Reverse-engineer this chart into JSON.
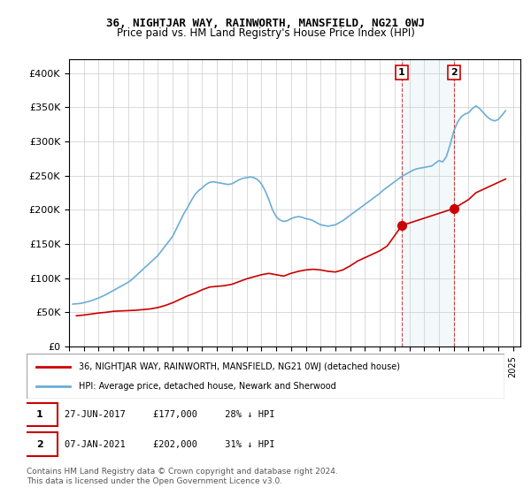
{
  "title": "36, NIGHTJAR WAY, RAINWORTH, MANSFIELD, NG21 0WJ",
  "subtitle": "Price paid vs. HM Land Registry's House Price Index (HPI)",
  "xlabel": "",
  "ylabel": "",
  "ylim": [
    0,
    420000
  ],
  "yticks": [
    0,
    50000,
    100000,
    150000,
    200000,
    250000,
    300000,
    350000,
    400000
  ],
  "ytick_labels": [
    "£0",
    "£50K",
    "£100K",
    "£150K",
    "£200K",
    "£250K",
    "£300K",
    "£350K",
    "£400K"
  ],
  "xlim_start": 1995.0,
  "xlim_end": 2025.5,
  "marker1_x": 2017.49,
  "marker1_y": 177000,
  "marker2_x": 2021.02,
  "marker2_y": 202000,
  "marker1_label": "1",
  "marker2_label": "2",
  "legend_line1": "36, NIGHTJAR WAY, RAINWORTH, MANSFIELD, NG21 0WJ (detached house)",
  "legend_line2": "HPI: Average price, detached house, Newark and Sherwood",
  "annotation1": "27-JUN-2017     £177,000     28% ↓ HPI",
  "annotation2": "07-JAN-2021     £202,000     31% ↓ HPI",
  "footer": "Contains HM Land Registry data © Crown copyright and database right 2024.\nThis data is licensed under the Open Government Licence v3.0.",
  "hpi_color": "#6baed6",
  "price_color": "#cc0000",
  "vline_color": "#cc0000",
  "vline_alpha": 0.5,
  "grid_color": "#cccccc",
  "background_color": "#ffffff",
  "hpi_data": {
    "years": [
      1995.25,
      1995.5,
      1995.75,
      1996.0,
      1996.25,
      1996.5,
      1996.75,
      1997.0,
      1997.25,
      1997.5,
      1997.75,
      1998.0,
      1998.25,
      1998.5,
      1998.75,
      1999.0,
      1999.25,
      1999.5,
      1999.75,
      2000.0,
      2000.25,
      2000.5,
      2000.75,
      2001.0,
      2001.25,
      2001.5,
      2001.75,
      2002.0,
      2002.25,
      2002.5,
      2002.75,
      2003.0,
      2003.25,
      2003.5,
      2003.75,
      2004.0,
      2004.25,
      2004.5,
      2004.75,
      2005.0,
      2005.25,
      2005.5,
      2005.75,
      2006.0,
      2006.25,
      2006.5,
      2006.75,
      2007.0,
      2007.25,
      2007.5,
      2007.75,
      2008.0,
      2008.25,
      2008.5,
      2008.75,
      2009.0,
      2009.25,
      2009.5,
      2009.75,
      2010.0,
      2010.25,
      2010.5,
      2010.75,
      2011.0,
      2011.25,
      2011.5,
      2011.75,
      2012.0,
      2012.25,
      2012.5,
      2012.75,
      2013.0,
      2013.25,
      2013.5,
      2013.75,
      2014.0,
      2014.25,
      2014.5,
      2014.75,
      2015.0,
      2015.25,
      2015.5,
      2015.75,
      2016.0,
      2016.25,
      2016.5,
      2016.75,
      2017.0,
      2017.25,
      2017.5,
      2017.75,
      2018.0,
      2018.25,
      2018.5,
      2018.75,
      2019.0,
      2019.25,
      2019.5,
      2019.75,
      2020.0,
      2020.25,
      2020.5,
      2020.75,
      2021.0,
      2021.25,
      2021.5,
      2021.75,
      2022.0,
      2022.25,
      2022.5,
      2022.75,
      2023.0,
      2023.25,
      2023.5,
      2023.75,
      2024.0,
      2024.25,
      2024.5
    ],
    "values": [
      62000,
      62500,
      63000,
      64000,
      65500,
      67000,
      69000,
      71000,
      73500,
      76000,
      79000,
      82000,
      85000,
      88000,
      91000,
      94000,
      98000,
      103000,
      108000,
      113000,
      118000,
      123000,
      128000,
      133000,
      140000,
      147000,
      154000,
      161000,
      172000,
      183000,
      194000,
      203000,
      213000,
      222000,
      228000,
      232000,
      237000,
      240000,
      241000,
      240000,
      239000,
      238000,
      237000,
      238000,
      241000,
      244000,
      246000,
      247000,
      248000,
      247000,
      244000,
      238000,
      228000,
      215000,
      200000,
      190000,
      185000,
      183000,
      184000,
      187000,
      189000,
      190000,
      189000,
      187000,
      186000,
      184000,
      181000,
      178000,
      177000,
      176000,
      177000,
      178000,
      181000,
      184000,
      188000,
      192000,
      196000,
      200000,
      204000,
      208000,
      212000,
      216000,
      220000,
      224000,
      229000,
      233000,
      237000,
      241000,
      245000,
      249000,
      252000,
      255000,
      258000,
      260000,
      261000,
      262000,
      263000,
      264000,
      268000,
      272000,
      270000,
      278000,
      295000,
      315000,
      328000,
      336000,
      340000,
      342000,
      348000,
      352000,
      348000,
      342000,
      336000,
      332000,
      330000,
      332000,
      338000,
      345000
    ]
  },
  "price_data": {
    "years": [
      1995.5,
      1996.0,
      1996.5,
      1997.0,
      1997.5,
      1998.0,
      1998.5,
      1999.0,
      1999.5,
      2000.0,
      2000.5,
      2001.0,
      2001.5,
      2002.0,
      2002.5,
      2003.0,
      2003.5,
      2004.0,
      2004.5,
      2005.0,
      2005.5,
      2006.0,
      2006.5,
      2007.0,
      2007.5,
      2008.0,
      2008.5,
      2009.0,
      2009.5,
      2010.0,
      2010.5,
      2011.0,
      2011.5,
      2012.0,
      2012.5,
      2013.0,
      2013.5,
      2014.0,
      2014.5,
      2015.0,
      2015.5,
      2016.0,
      2016.5,
      2017.49,
      2021.02,
      2022.0,
      2022.5,
      2023.0,
      2023.5,
      2024.0,
      2024.5
    ],
    "values": [
      45000,
      46000,
      47500,
      49000,
      50000,
      51500,
      52000,
      52500,
      53000,
      54000,
      55000,
      57000,
      60000,
      64000,
      69000,
      74000,
      78000,
      83000,
      87000,
      88000,
      89000,
      91000,
      95000,
      99000,
      102000,
      105000,
      107000,
      105000,
      103000,
      107000,
      110000,
      112000,
      113000,
      112000,
      110000,
      109000,
      112000,
      118000,
      125000,
      130000,
      135000,
      140000,
      147000,
      177000,
      202000,
      215000,
      225000,
      230000,
      235000,
      240000,
      245000
    ]
  }
}
